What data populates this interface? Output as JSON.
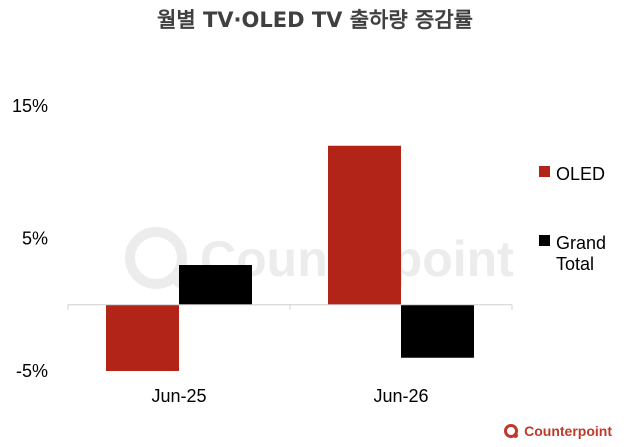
{
  "chart_data": {
    "type": "bar",
    "title": "월별 TV·OLED TV 출하량 증감률",
    "categories": [
      "Jun-25",
      "Jun-26"
    ],
    "series": [
      {
        "name": "OLED",
        "values": [
          -5,
          12
        ],
        "color": "#b22417"
      },
      {
        "name": "Grand Total",
        "values": [
          3,
          -4
        ],
        "color": "#000000"
      }
    ],
    "y_ticks": [
      "15%",
      "5%",
      "-5%"
    ],
    "y_tick_values": [
      15,
      5,
      -5
    ],
    "ylim": [
      -5,
      15
    ],
    "grid": false,
    "legend_position": "right"
  },
  "watermark": "Counterpoint",
  "brand": "Counterpoint"
}
